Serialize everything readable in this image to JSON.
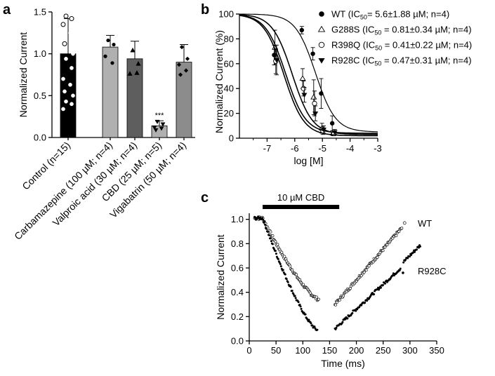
{
  "colors": {
    "black": "#000000",
    "gray_light": "#b0b0b0",
    "gray_mid": "#5e5e5e",
    "gray_dark": "#7b7b7b",
    "gray_vig": "#8c8c8c"
  },
  "chart_data": [
    {
      "panel": "a",
      "type": "bar",
      "ylabel": "Normalized Current",
      "ylim": [
        0,
        1.5
      ],
      "yticks": [
        "0.0",
        "0.5",
        "1.0",
        "1.5"
      ],
      "categories": [
        "Control (n=15)",
        "Carbamazepine (100 µM; n=4)",
        "Valproic acid (30 µM; n=4)",
        "CBD (25 µM; n=5)",
        "Vigabatrin (50 µM; n=4)"
      ],
      "values": [
        1.0,
        1.08,
        0.94,
        0.14,
        0.9
      ],
      "errors": [
        0.42,
        0.14,
        0.21,
        0.06,
        0.21
      ],
      "annotation": "***",
      "points": [
        [
          1.45,
          1.42,
          1.35,
          1.25,
          1.12,
          1.0,
          0.94,
          0.83,
          0.7,
          0.63,
          0.55,
          0.5,
          0.43,
          0.4,
          0.34
        ],
        [
          1.16,
          1.11,
          0.97,
          0.89
        ],
        [
          1.04,
          0.88,
          0.76,
          0.77
        ],
        [
          0.19,
          0.16,
          0.12,
          0.11,
          0.09
        ],
        [
          1.08,
          0.94,
          0.87,
          0.8,
          0.75
        ]
      ]
    },
    {
      "panel": "b",
      "type": "scatter",
      "xlabel": "log [M]",
      "ylabel": "Normalized Current (%)",
      "xlim": [
        -8,
        -3
      ],
      "ylim": [
        0,
        100
      ],
      "xticks": [
        "-7",
        "-6",
        "-5",
        "-4",
        "-3"
      ],
      "yticks": [
        "0",
        "20",
        "40",
        "60",
        "80",
        "100"
      ],
      "x": [
        -6.7,
        -5.7,
        -5.3,
        -5.0,
        -4.6
      ],
      "series": [
        {
          "name": "WT",
          "label_prefix": "WT  (IC",
          "sub": "50",
          "label_suffix": "= 5.6±1.88 µM; n=4)",
          "marker": "filled-circle",
          "values": [
            67,
            87,
            68,
            36,
            12
          ],
          "errors": [
            8,
            3,
            5,
            12,
            6
          ],
          "logIC50": -5.25,
          "top": 100,
          "bottom": 5
        },
        {
          "name": "G288S",
          "label_prefix": "G288S  (IC",
          "sub": "50",
          "label_suffix": " = 0.81±0.34 µM; n=4)",
          "marker": "open-triangle",
          "values": [
            73,
            48,
            33,
            8,
            4
          ],
          "errors": [
            14,
            8,
            14,
            4,
            2
          ],
          "logIC50": -6.09,
          "top": 100,
          "bottom": 3
        },
        {
          "name": "R398Q",
          "label_prefix": "R398Q  (IC",
          "sub": "50",
          "label_suffix": " = 0.41±0.22 µM; n=4)",
          "marker": "open-circle",
          "values": [
            62,
            40,
            28,
            6,
            4
          ],
          "errors": [
            10,
            6,
            10,
            3,
            2
          ],
          "logIC50": -6.39,
          "top": 100,
          "bottom": 2
        },
        {
          "name": "R928C",
          "label_prefix": "R928C  (IC",
          "sub": "50",
          "label_suffix": " = 0.47±0.31 µM; n=4)",
          "marker": "filled-triangle",
          "values": [
            63,
            35,
            20,
            7,
            5
          ],
          "errors": [
            12,
            6,
            6,
            3,
            2
          ],
          "logIC50": -6.33,
          "top": 100,
          "bottom": 4
        }
      ]
    },
    {
      "panel": "c",
      "type": "scatter",
      "xlabel": "Time (ms)",
      "ylabel": "Normalized Current",
      "xlim": [
        0,
        350
      ],
      "ylim": [
        0,
        1.05
      ],
      "xticks": [
        "0",
        "50",
        "100",
        "150",
        "200",
        "250",
        "300",
        "350"
      ],
      "yticks": [
        "0.0",
        "0.2",
        "0.4",
        "0.6",
        "0.8",
        "1.0"
      ],
      "bar_label": "10 µM CBD",
      "bar_range": [
        25,
        168
      ],
      "series": [
        {
          "name": "WT",
          "marker": "open-circle",
          "label": "WT",
          "segments": [
            {
              "t": [
                10,
                130
              ],
              "v": [
                1.01,
                0.34
              ],
              "start": [
                10,
                25
              ],
              "plateau": 1.01
            },
            {
              "t": [
                160,
                285
              ],
              "v": [
                0.3,
                0.93
              ]
            }
          ],
          "extra": [
            {
              "t": 290,
              "v": 0.97
            }
          ]
        },
        {
          "name": "R928C",
          "marker": "filled-circle",
          "label": "R928C",
          "segments": [
            {
              "t": [
                10,
                127
              ],
              "v": [
                1.01,
                0.09
              ],
              "start": [
                10,
                25
              ],
              "plateau": 1.01
            },
            {
              "t": [
                160,
                283
              ],
              "v": [
                0.1,
                0.6
              ]
            },
            {
              "t": [
                288,
                320
              ],
              "v": [
                0.65,
                0.79
              ]
            }
          ],
          "extra": [
            {
              "t": 287,
              "v": 0.56
            }
          ]
        }
      ]
    }
  ],
  "panel_labels": [
    "a",
    "b",
    "c"
  ]
}
